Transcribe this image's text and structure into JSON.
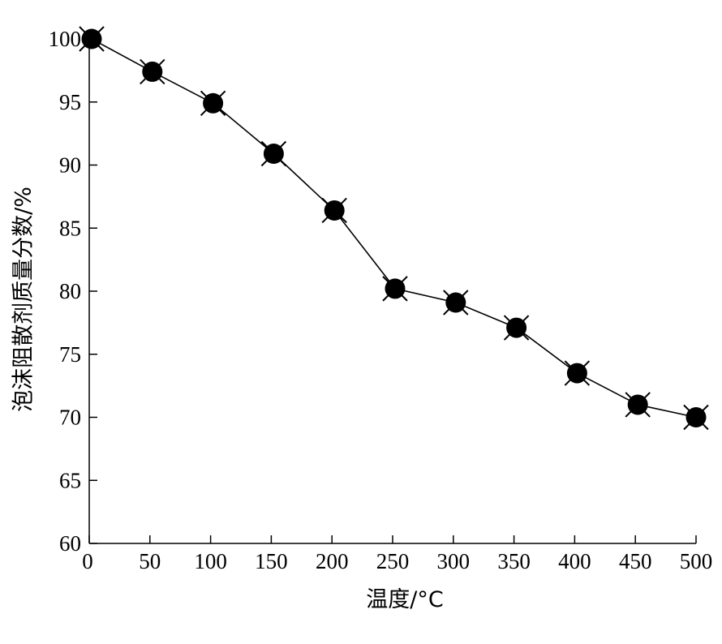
{
  "chart_data": {
    "type": "line",
    "title": "",
    "xlabel": "温度/°C",
    "ylabel": "泡沫阻散剂质量分数/%",
    "xlim": [
      0,
      500
    ],
    "ylim": [
      60,
      100
    ],
    "xticks": [
      0,
      50,
      100,
      150,
      200,
      250,
      300,
      350,
      400,
      450,
      500
    ],
    "yticks": [
      60,
      65,
      70,
      75,
      80,
      85,
      90,
      95,
      100
    ],
    "grid": false,
    "legend": "none",
    "series": [
      {
        "marker": "filled-circle-with-cross",
        "color": "#000000",
        "x": [
          2,
          52,
          102,
          152,
          202,
          252,
          302,
          352,
          402,
          452,
          500
        ],
        "y": [
          100,
          97.4,
          94.9,
          90.9,
          86.4,
          80.2,
          79.1,
          77.1,
          73.5,
          71.0,
          70.0
        ]
      }
    ]
  }
}
